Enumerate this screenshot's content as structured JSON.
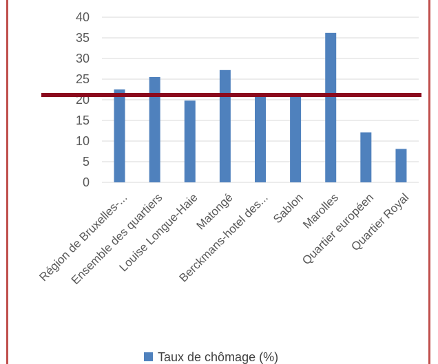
{
  "chart_data": {
    "type": "bar",
    "title": "",
    "xlabel": "",
    "ylabel": "",
    "categories": [
      "Région de Bruxelles-...",
      "Ensemble des quartiers",
      "Louise Longue-Haie",
      "Matongé",
      "Berckmans-hotel des...",
      "Sablon",
      "Marolles",
      "Quartier européen",
      "Quartier Royal"
    ],
    "series": [
      {
        "name": "Taux de chômage (%)",
        "values": [
          22.5,
          25.5,
          19.8,
          27.2,
          20.8,
          21.1,
          36.2,
          12.1,
          8.1
        ],
        "color": "#4f81bd"
      }
    ],
    "reference_line": {
      "value": 22.5,
      "color": "#8b0a1e"
    },
    "ylim": [
      0,
      40
    ],
    "yticks": [
      0,
      5,
      10,
      15,
      20,
      25,
      30,
      35,
      40
    ],
    "grid": true,
    "legend": "bottom"
  },
  "colors": {
    "border": "#c0504d",
    "grid": "#d9d9d9"
  }
}
